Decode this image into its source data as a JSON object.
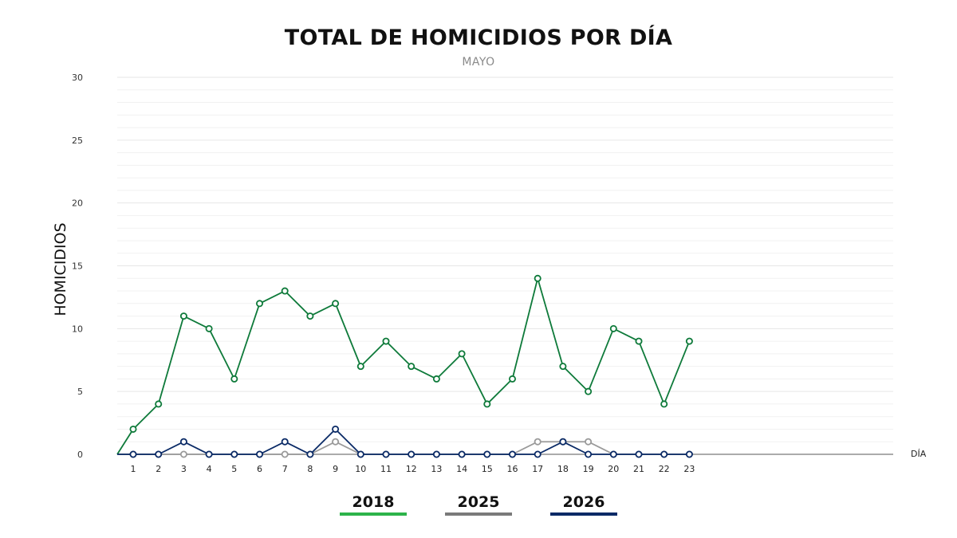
{
  "chart_data": {
    "type": "line",
    "title": "TOTAL DE HOMICIDIOS POR DÍA",
    "subtitle": "MAYO",
    "ylabel": "HOMICIDIOS",
    "xlabel": "DÍA",
    "ylim": [
      0,
      30
    ],
    "yticks": [
      0,
      5,
      10,
      15,
      20,
      25,
      30
    ],
    "grid": true,
    "legend_position": "bottom",
    "x": [
      1,
      2,
      3,
      4,
      5,
      6,
      7,
      8,
      9,
      10,
      11,
      12,
      13,
      14,
      15,
      16,
      17,
      18,
      19,
      20,
      21,
      22,
      23
    ],
    "series": [
      {
        "name": "2018",
        "color": "#0e7a3a",
        "legend_color": "#2db34a",
        "values": [
          2,
          4,
          11,
          10,
          6,
          12,
          13,
          11,
          12,
          7,
          9,
          7,
          6,
          8,
          4,
          6,
          14,
          7,
          5,
          10,
          9,
          4,
          9
        ]
      },
      {
        "name": "2025",
        "color": "#9a9a9a",
        "legend_color": "#7a7a7a",
        "values": [
          0,
          0,
          0,
          0,
          0,
          0,
          0,
          0,
          1,
          0,
          0,
          0,
          0,
          0,
          0,
          0,
          1,
          1,
          1,
          0,
          0,
          0,
          0
        ]
      },
      {
        "name": "2026",
        "color": "#0a2a66",
        "legend_color": "#0a2a66",
        "values": [
          0,
          0,
          1,
          0,
          0,
          0,
          1,
          0,
          2,
          0,
          0,
          0,
          0,
          0,
          0,
          0,
          0,
          1,
          0,
          0,
          0,
          0,
          0
        ]
      }
    ]
  }
}
